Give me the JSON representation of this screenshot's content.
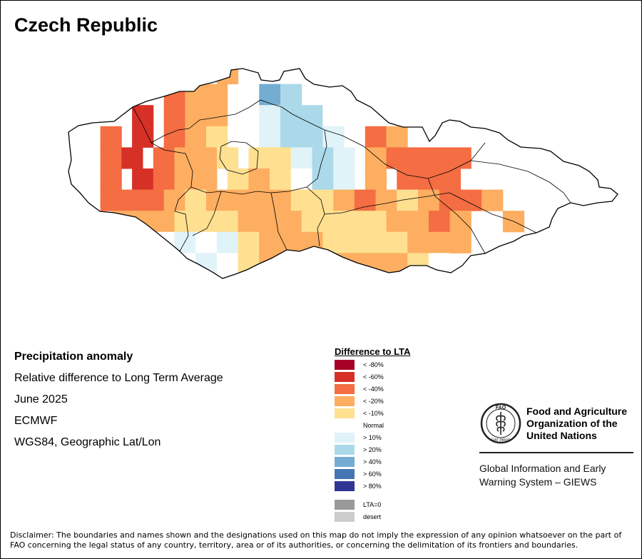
{
  "title": "Czech Republic",
  "info": {
    "heading": "Precipitation anomaly",
    "subtitle": "Relative difference to Long Term Average",
    "date": "June 2025",
    "source": "ECMWF",
    "projection": "WGS84, Geographic Lat/Lon"
  },
  "legend": {
    "title": "Difference to LTA",
    "items": [
      {
        "label": "< -80%",
        "color": "#a50026"
      },
      {
        "label": "< -60%",
        "color": "#d73027"
      },
      {
        "label": "< -40%",
        "color": "#f46d43"
      },
      {
        "label": "< -20%",
        "color": "#fdae61"
      },
      {
        "label": "< -10%",
        "color": "#fee090"
      },
      {
        "label": "Normal",
        "color": "#ffffff"
      },
      {
        "label": "> 10%",
        "color": "#e0f3f8"
      },
      {
        "label": "> 20%",
        "color": "#abd9e9"
      },
      {
        "label": "> 40%",
        "color": "#74add1"
      },
      {
        "label": "> 60%",
        "color": "#4575b4"
      },
      {
        "label": "> 80%",
        "color": "#313695"
      }
    ],
    "extra": [
      {
        "label": "LTA=0",
        "color": "#999999"
      },
      {
        "label": "desert",
        "color": "#cccccc"
      }
    ]
  },
  "fao": {
    "emblem_top": "FAO",
    "emblem_bottom": "FIAT PANIS",
    "name": [
      "Food and Agriculture",
      "Organization of the",
      "United Nations"
    ],
    "giews": [
      "Global Information and Early",
      "Warning System – GIEWS"
    ]
  },
  "disclaimer": "Disclaimer: The boundaries and names shown and the designations used on this map do not imply the expression of any opinion whatsoever on the part of FAO concerning the legal status of any country, territory, area or of its authorities, or concerning the delimitation of its frontiers and boundaries.",
  "anomaly_grid": {
    "legend_index_note": "0:<-80 1:<-60 2:<-40 3:<-20 4:<-10 5:normal 6:>10 7:>20 8:>40",
    "rows": [
      "...........3..3..............................",
      ".........2.3.3..5.8.7........................",
      "......1..2.3.3..5.6.7.7.5....................",
      "...2..1..2.3.4..5.6.7.7.6...2.3..............",
      "...2.1..2.3.3.4..4.4.6.7.6..3.2.2.2.2........",
      "...2..1.2.3.3..4.3.4.5.7.6..3..2.2.2.........",
      "...2.2.2.3.4.3.3.3.3.4.4.3.2.3.4.3.2.2.3.....",
      "....3.3.3.4.4.4.3.3.3.4.4.4.4.3.3.2.3....3...",
      "........5.6.5.6.4.3.3.3.4.4.4.4.3.3.3........",
      "........5.5.6.5.4.3.3.4.3.3.3.3.4.5..........",
      "........3.5.6.5.3.3.3.2.3.3.3.3.3.4..........",
      ".........4.5.5.4.5.5.....2.2..2.2............"
    ]
  }
}
